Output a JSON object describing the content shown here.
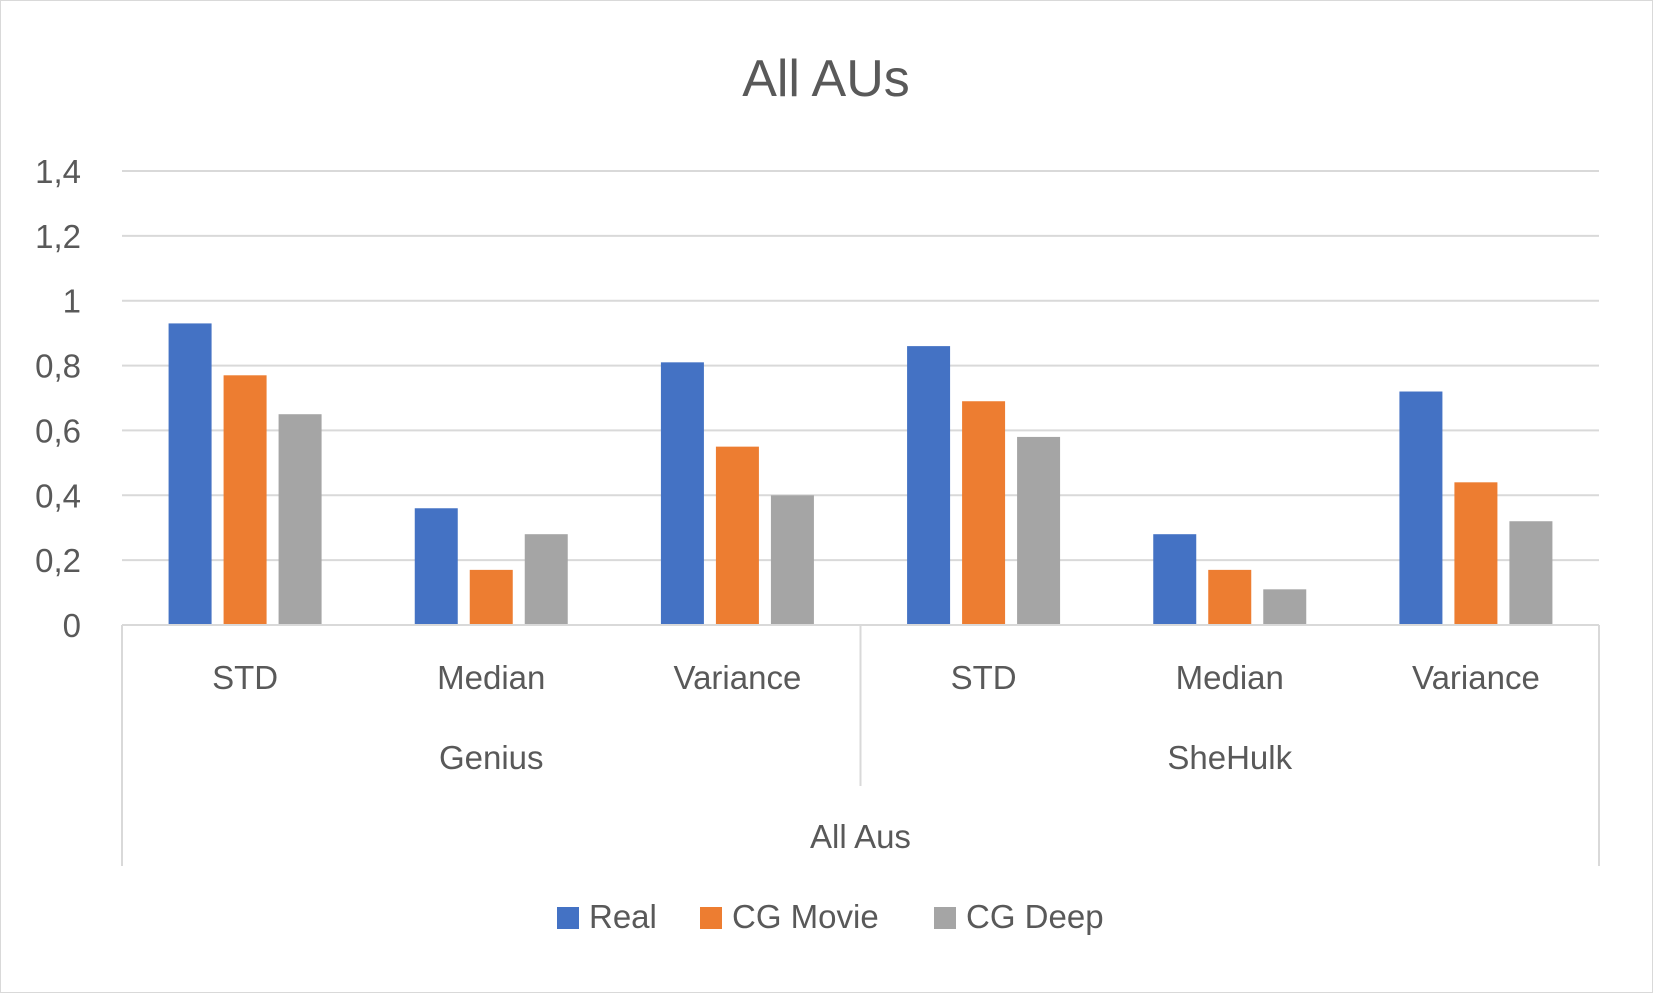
{
  "chart_data": {
    "type": "bar",
    "title": "All AUs",
    "ylim": [
      0,
      1.4
    ],
    "y_ticks": [
      "0",
      "0,2",
      "0,4",
      "0,6",
      "0,8",
      "1",
      "1,2",
      "1,4"
    ],
    "categories": [
      "STD",
      "Median",
      "Variance",
      "STD",
      "Median",
      "Variance"
    ],
    "groups": [
      {
        "label": "Genius",
        "categories": [
          "STD",
          "Median",
          "Variance"
        ]
      },
      {
        "label": "SheHulk",
        "categories": [
          "STD",
          "Median",
          "Variance"
        ]
      }
    ],
    "outer_group": "All Aus",
    "series": [
      {
        "name": "Real",
        "color": "#4472C4",
        "values": [
          0.93,
          0.36,
          0.81,
          0.86,
          0.28,
          0.72
        ]
      },
      {
        "name": "CG Movie",
        "color": "#ED7D31",
        "values": [
          0.77,
          0.17,
          0.55,
          0.69,
          0.17,
          0.44
        ]
      },
      {
        "name": "CG Deep",
        "color": "#A5A5A5",
        "values": [
          0.65,
          0.28,
          0.4,
          0.58,
          0.11,
          0.32
        ]
      }
    ],
    "grid": true,
    "legend_position": "bottom"
  }
}
